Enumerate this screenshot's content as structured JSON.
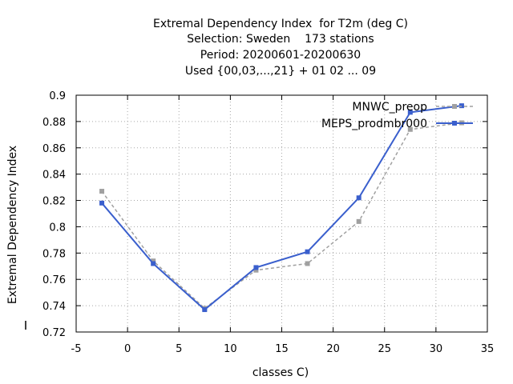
{
  "chart_data": {
    "type": "line",
    "title_lines": [
      "Extremal Dependency Index  for T2m (deg C)",
      "Selection: Sweden    173 stations",
      "Period: 20200601-20200630",
      "Used {00,03,...,21} + 01 02 ... 09"
    ],
    "xlabel": "classes C)",
    "ylabel": "Extremal Dependency Index",
    "xlim": [
      -5,
      35
    ],
    "ylim": [
      0.72,
      0.9
    ],
    "xticks": [
      -5,
      0,
      5,
      10,
      15,
      20,
      25,
      30,
      35
    ],
    "yticks": [
      0.72,
      0.74,
      0.76,
      0.78,
      0.8,
      0.82,
      0.84,
      0.86,
      0.88,
      0.9
    ],
    "xtick_labels": [
      "-5",
      "0",
      "5",
      "10",
      "15",
      "20",
      "25",
      "30",
      "35"
    ],
    "ytick_labels": [
      "0.72",
      "0.74",
      "0.76",
      "0.78",
      "0.8",
      "0.82",
      "0.84",
      "0.86",
      "0.88",
      "0.9"
    ],
    "grid": true,
    "legend_position": "top-right",
    "x": [
      -2.5,
      2.5,
      7.5,
      12.5,
      17.5,
      22.5,
      27.5,
      32.5
    ],
    "series": [
      {
        "name": "MNWC_preop",
        "color": "#a0a0a0",
        "dash": true,
        "values": [
          0.827,
          0.774,
          0.738,
          0.767,
          0.772,
          0.804,
          0.874,
          0.879
        ]
      },
      {
        "name": "MEPS_prodmbr000",
        "color": "#3a5fcd",
        "dash": false,
        "values": [
          0.818,
          0.772,
          0.737,
          0.769,
          0.781,
          0.822,
          0.887,
          0.892
        ]
      }
    ]
  }
}
